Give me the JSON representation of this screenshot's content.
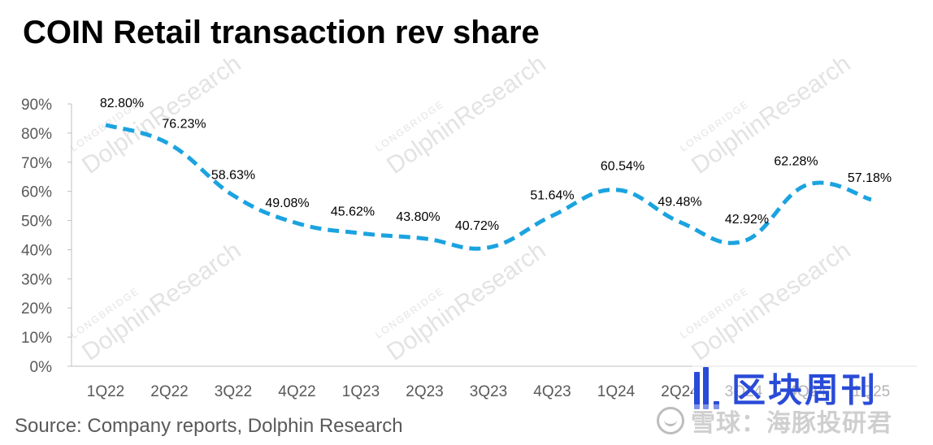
{
  "title": "COIN Retail transaction rev share",
  "source": "Source: Company reports, Dolphin Research",
  "watermark": {
    "small": "LONGBRIDGE",
    "large": "DolphinResearch"
  },
  "brand_logo": {
    "text": "区块周刊",
    "icon": "bar-chart-logo-icon",
    "color": "#2a4bd7"
  },
  "platform_watermark": {
    "icon": "xueqiu-snowball-icon",
    "text": "雪球：海豚投研君"
  },
  "chart_data": {
    "type": "line",
    "title": "COIN Retail transaction rev share",
    "categories": [
      "1Q22",
      "2Q22",
      "3Q22",
      "4Q22",
      "1Q23",
      "2Q23",
      "3Q23",
      "4Q23",
      "1Q24",
      "2Q24",
      "3Q24",
      "4Q24",
      "1Q25"
    ],
    "series": [
      {
        "values": [
          82.8,
          76.23,
          58.63,
          49.08,
          45.62,
          43.8,
          40.72,
          51.64,
          60.54,
          49.48,
          42.92,
          62.28,
          57.18
        ],
        "labels": [
          "82.80%",
          "76.23%",
          "58.63%",
          "49.08%",
          "45.62%",
          "43.80%",
          "40.72%",
          "51.64%",
          "60.54%",
          "49.48%",
          "42.92%",
          "62.28%",
          "57.18%"
        ],
        "color": "#1ba3e0",
        "line_style": "dashed",
        "smooth": true
      }
    ],
    "y_ticks": [
      "0%",
      "10%",
      "20%",
      "30%",
      "40%",
      "50%",
      "60%",
      "70%",
      "80%",
      "90%"
    ],
    "ylim": [
      0,
      90
    ],
    "grid": false,
    "legend": "none"
  }
}
